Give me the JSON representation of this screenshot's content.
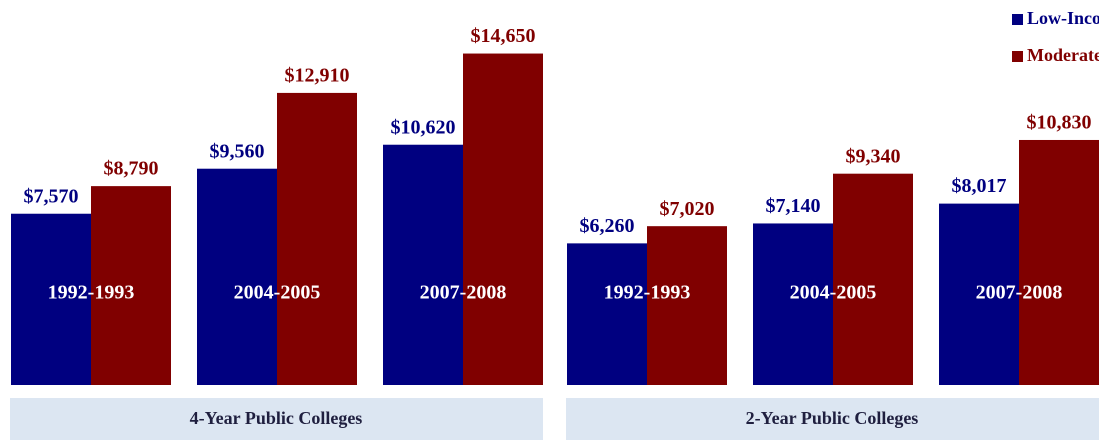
{
  "chart_data": [
    {
      "type": "bar",
      "title": "4-Year Public Colleges",
      "categories": [
        "1992-1993",
        "2004-2005",
        "2007-2008"
      ],
      "ylim": [
        0,
        16000
      ],
      "series": [
        {
          "color": "#000080",
          "values": [
            7570,
            9560,
            10620
          ],
          "value_labels": [
            "$7,570",
            "$9,560",
            "$10,620"
          ]
        },
        {
          "color": "#800000",
          "values": [
            8790,
            12910,
            14650
          ],
          "value_labels": [
            "$8,790",
            "$12,910",
            "$14,650"
          ]
        }
      ]
    },
    {
      "type": "bar",
      "title": "2-Year Public Colleges",
      "categories": [
        "1992-1993",
        "2004-2005",
        "2007-2008"
      ],
      "ylim": [
        0,
        16000
      ],
      "series": [
        {
          "name": "Low-Income",
          "color": "#000080",
          "values": [
            6260,
            7140,
            8017
          ],
          "value_labels": [
            "$6,260",
            "$7,140",
            "$8,017"
          ]
        },
        {
          "name": "Moderate-Income",
          "color": "#800000",
          "values": [
            7020,
            9340,
            10830
          ],
          "value_labels": [
            "$7,020",
            "$9,340",
            "$10,830"
          ]
        }
      ]
    }
  ]
}
